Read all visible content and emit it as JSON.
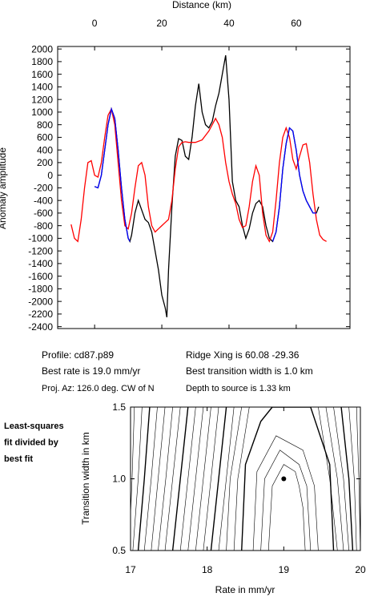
{
  "chart_data": [
    {
      "type": "line",
      "xlabel": "Distance (km)",
      "ylabel": "Anomaly amplitude",
      "xlim": [
        -11,
        76
      ],
      "ylim": [
        -2430,
        2040
      ],
      "xticks": [
        0,
        20,
        40,
        60
      ],
      "yticks": [
        -2400,
        -2200,
        -2000,
        -1800,
        -1600,
        -1400,
        -1200,
        -1000,
        -800,
        -600,
        -400,
        -200,
        0,
        200,
        400,
        600,
        800,
        1000,
        1200,
        1400,
        1600,
        1800,
        2000
      ],
      "series": [
        {
          "color": "#000000",
          "x": [
            0,
            1,
            2,
            3,
            4,
            5,
            6,
            7,
            8,
            9,
            10,
            10.5,
            11,
            12,
            13,
            14,
            15,
            16,
            17,
            18,
            19,
            20,
            21,
            21.5,
            22,
            23,
            24,
            25,
            26,
            27,
            28,
            29,
            30,
            31,
            32,
            33,
            34,
            35,
            36,
            37,
            38,
            39,
            40,
            41,
            42,
            43,
            44,
            45,
            46,
            47,
            48,
            49,
            50,
            51,
            52,
            53,
            54,
            55,
            56,
            57,
            58,
            59,
            60,
            61,
            62,
            63,
            64,
            65,
            66,
            66.7
          ],
          "values": [
            -180,
            -200,
            0,
            400,
            800,
            1050,
            900,
            400,
            -200,
            -700,
            -1000,
            -1050,
            -950,
            -600,
            -400,
            -550,
            -700,
            -750,
            -900,
            -1200,
            -1500,
            -1900,
            -2100,
            -2250,
            -1500,
            -500,
            300,
            580,
            550,
            300,
            250,
            600,
            1100,
            1450,
            1000,
            800,
            750,
            850,
            1100,
            1300,
            1600,
            1900,
            1200,
            -100,
            -400,
            -500,
            -800,
            -1000,
            -850,
            -600,
            -450,
            -400,
            -500,
            -800,
            -1000,
            -1050,
            -900,
            -500,
            100,
            500,
            750,
            700,
            400,
            0,
            -250,
            -400,
            -500,
            -600,
            -600,
            -500
          ]
        },
        {
          "color": "#ff0000",
          "x": [
            -7,
            -6,
            -5,
            -4,
            -3,
            -2,
            -1,
            0,
            1,
            2,
            3,
            4,
            5,
            6,
            7,
            8,
            9,
            10,
            11,
            12,
            13,
            14,
            15,
            16,
            17,
            18,
            19,
            20,
            21,
            22,
            23,
            24,
            25,
            26,
            27,
            28,
            30,
            32,
            34,
            36,
            37,
            38,
            39,
            40,
            41,
            42,
            43,
            44,
            45,
            46,
            47,
            48,
            49,
            50,
            51,
            52,
            53,
            54,
            55,
            56,
            57,
            58,
            59,
            60,
            61,
            62,
            63,
            64,
            65,
            66,
            67,
            68,
            69
          ],
          "values": [
            -780,
            -1000,
            -1050,
            -700,
            -200,
            200,
            230,
            0,
            -30,
            200,
            600,
            950,
            1050,
            800,
            200,
            -400,
            -800,
            -850,
            -600,
            -200,
            150,
            200,
            0,
            -500,
            -800,
            -900,
            -850,
            -800,
            -750,
            -700,
            -400,
            100,
            450,
            520,
            530,
            520,
            520,
            560,
            700,
            900,
            800,
            600,
            200,
            -100,
            -300,
            -450,
            -700,
            -830,
            -800,
            -500,
            -100,
            150,
            0,
            -600,
            -950,
            -1050,
            -900,
            -400,
            200,
            600,
            750,
            600,
            250,
            100,
            300,
            480,
            500,
            200,
            -300,
            -700,
            -950,
            -1020,
            -1050
          ]
        },
        {
          "color": "#0000ff",
          "x": [
            0,
            1,
            2,
            3,
            4,
            5,
            6,
            7,
            8,
            9,
            10,
            10.5,
            30,
            53,
            54,
            55,
            56,
            57,
            58,
            59,
            60,
            61,
            62,
            63,
            64,
            65,
            66
          ],
          "values": [
            -180,
            -200,
            0,
            400,
            800,
            1050,
            900,
            400,
            -200,
            -700,
            -1000,
            -1050,
            null,
            -1050,
            -900,
            -500,
            100,
            500,
            750,
            700,
            400,
            0,
            -250,
            -400,
            -500,
            -600,
            -600
          ]
        }
      ],
      "annotations": [
        "Profile: cd87.p89",
        "Ridge Xing is 60.08 -29.36",
        "Best rate is 19.0 mm/yr",
        "Best transition width is 1.0 km",
        "Proj. Az: 126.0 deg. CW of N",
        "Depth to source is  1.33 km"
      ]
    },
    {
      "type": "contour",
      "side_label": [
        "Least-squares",
        "fit divided by",
        "best fit"
      ],
      "xlabel": "Rate in mm/yr",
      "ylabel": "Transition width in km",
      "xlim": [
        17,
        20
      ],
      "ylim": [
        0.5,
        1.5
      ],
      "xticks": [
        17,
        18,
        19,
        20
      ],
      "yticks": [
        0.5,
        {
          "value": 1,
          "label": "1.0"
        },
        {
          "value": 1.5,
          "label": "1.5"
        }
      ],
      "best": {
        "x": 19.0,
        "y": 1.0
      },
      "contours": [
        {
          "x": [
            17.05,
            17.02,
            16.98
          ],
          "y": [
            1.5,
            1.0,
            0.5
          ]
        },
        {
          "x": [
            17.15,
            17.1,
            17.03
          ],
          "y": [
            1.5,
            1.0,
            0.5
          ]
        },
        {
          "x": [
            17.25,
            17.18,
            17.1
          ],
          "y": [
            1.5,
            1.0,
            0.5
          ],
          "bold": true
        },
        {
          "x": [
            17.35,
            17.27,
            17.18
          ],
          "y": [
            1.5,
            1.0,
            0.5
          ]
        },
        {
          "x": [
            17.45,
            17.36,
            17.27
          ],
          "y": [
            1.5,
            1.0,
            0.5
          ]
        },
        {
          "x": [
            17.55,
            17.46,
            17.36
          ],
          "y": [
            1.5,
            1.0,
            0.5
          ]
        },
        {
          "x": [
            17.65,
            17.55,
            17.45
          ],
          "y": [
            1.5,
            1.0,
            0.5
          ]
        },
        {
          "x": [
            17.75,
            17.65,
            17.55
          ],
          "y": [
            1.5,
            1.0,
            0.5
          ],
          "bold": true
        },
        {
          "x": [
            17.85,
            17.75,
            17.65
          ],
          "y": [
            1.5,
            1.0,
            0.5
          ]
        },
        {
          "x": [
            17.95,
            17.85,
            17.75
          ],
          "y": [
            1.5,
            1.0,
            0.5
          ]
        },
        {
          "x": [
            18.05,
            17.95,
            17.85
          ],
          "y": [
            1.5,
            1.0,
            0.5
          ]
        },
        {
          "x": [
            18.15,
            18.05,
            17.95
          ],
          "y": [
            1.5,
            1.0,
            0.5
          ]
        },
        {
          "x": [
            18.25,
            18.15,
            18.05
          ],
          "y": [
            1.5,
            1.0,
            0.5
          ],
          "bold": true
        },
        {
          "x": [
            18.35,
            18.25,
            18.15
          ],
          "y": [
            1.5,
            1.0,
            0.5
          ]
        },
        {
          "x": [
            18.45,
            18.3,
            18.25
          ],
          "y": [
            1.5,
            1.0,
            0.5
          ]
        },
        {
          "x": [
            18.55,
            18.4,
            18.35
          ],
          "y": [
            1.5,
            1.0,
            0.5
          ]
        },
        {
          "x": [
            18.45,
            18.5,
            18.7,
            18.85,
            19.35,
            19.6,
            19.65
          ],
          "y": [
            0.5,
            1.1,
            1.4,
            1.5,
            1.5,
            1.1,
            0.5
          ],
          "bold": true
        },
        {
          "x": [
            18.6,
            18.65,
            18.9,
            19.25,
            19.4,
            19.45
          ],
          "y": [
            0.5,
            1.05,
            1.3,
            1.2,
            0.95,
            0.5
          ]
        },
        {
          "x": [
            18.7,
            18.75,
            18.95,
            19.2,
            19.3,
            19.35
          ],
          "y": [
            0.5,
            1.0,
            1.2,
            1.1,
            0.95,
            0.5
          ]
        },
        {
          "x": [
            18.8,
            18.85,
            19.0,
            19.15,
            19.2,
            19.25,
            19.28
          ],
          "y": [
            0.5,
            0.95,
            1.1,
            1.05,
            0.95,
            0.8,
            0.5
          ]
        },
        {
          "x": [
            19.45,
            19.6,
            19.7
          ],
          "y": [
            1.5,
            1.0,
            0.5
          ]
        },
        {
          "x": [
            19.55,
            19.7,
            19.78
          ],
          "y": [
            1.5,
            1.0,
            0.5
          ]
        },
        {
          "x": [
            19.65,
            19.78,
            19.85
          ],
          "y": [
            1.5,
            1.0,
            0.5
          ]
        },
        {
          "x": [
            19.75,
            19.85,
            19.9
          ],
          "y": [
            1.5,
            1.0,
            0.5
          ],
          "bold": true
        },
        {
          "x": [
            19.85,
            19.92,
            19.95
          ],
          "y": [
            1.5,
            1.0,
            0.5
          ]
        },
        {
          "x": [
            19.95,
            19.98,
            20.0
          ],
          "y": [
            1.5,
            1.0,
            0.5
          ]
        }
      ]
    }
  ]
}
